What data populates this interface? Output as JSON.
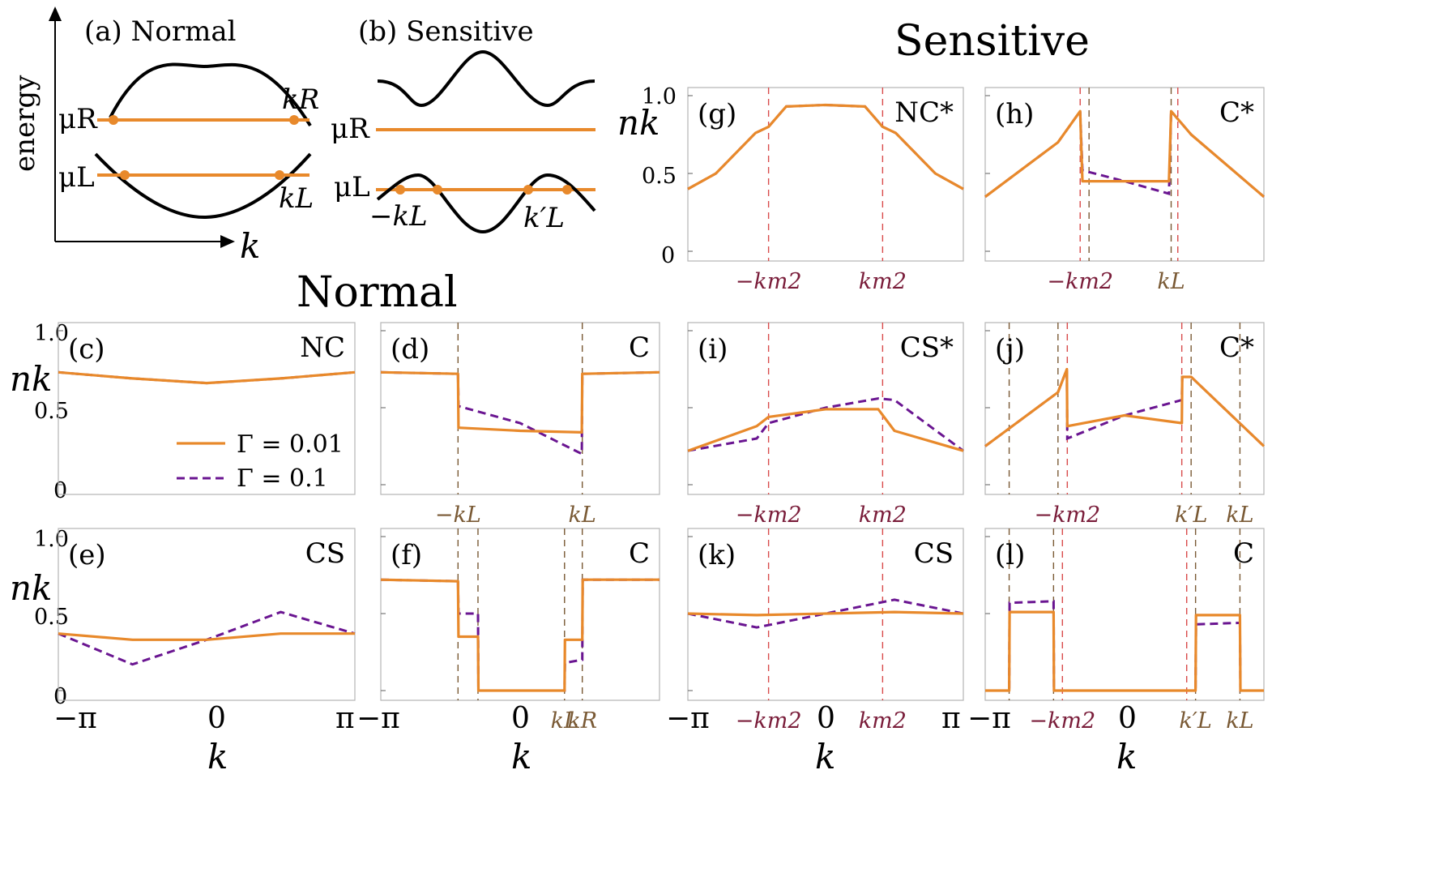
{
  "headings": {
    "sensitive": "Sensitive",
    "normal": "Normal"
  },
  "schematic": {
    "a": {
      "label": "(a) Normal",
      "energy": "energy",
      "k": "k",
      "mu_R": "μR",
      "mu_L": "μL",
      "k_R": "kR",
      "k_L": "kL"
    },
    "b": {
      "label": "(b) Sensitive",
      "mu_R": "μR",
      "mu_L": "μL",
      "neg_k_L": "−kL",
      "k_L_prime": "k′L"
    }
  },
  "axes": {
    "ylabel": "nk",
    "xlabel": "k",
    "yticks": [
      "1.0",
      "0.5",
      "0"
    ],
    "xticks": [
      "−π",
      "0",
      "π"
    ]
  },
  "legend": {
    "solid": "Γ = 0.01",
    "dashed": "Γ = 0.1"
  },
  "colors": {
    "solid": "#e8892b",
    "dashed": "#6a1591",
    "marker_brown": "#7a5a35",
    "marker_red": "#d94b4b",
    "marker_maroon": "#7a1d3a"
  },
  "chart_data": [
    {
      "type": "line",
      "panel": "(c)",
      "tag": "NC",
      "x": [
        -3.14,
        -1.57,
        0,
        1.57,
        3.14
      ],
      "series": [
        {
          "name": "Γ = 0.01",
          "values": [
            0.73,
            0.69,
            0.66,
            0.69,
            0.73
          ]
        },
        {
          "name": "Γ = 0.1",
          "values": [
            0.73,
            0.69,
            0.66,
            0.69,
            0.73
          ]
        }
      ],
      "ylim": [
        0,
        1
      ],
      "xlim": [
        -3.14,
        3.14
      ],
      "markers": []
    },
    {
      "type": "line",
      "panel": "(d)",
      "tag": "C",
      "x": [
        -3.14,
        -1.4,
        -1.39,
        0,
        1.39,
        1.4,
        3.14
      ],
      "series": [
        {
          "name": "Γ = 0.01",
          "values": [
            0.73,
            0.72,
            0.37,
            0.35,
            0.34,
            0.72,
            0.73
          ]
        },
        {
          "name": "Γ = 0.1",
          "values": [
            0.73,
            0.72,
            0.51,
            0.4,
            0.2,
            0.72,
            0.73
          ]
        }
      ],
      "ylim": [
        0,
        1
      ],
      "xlim": [
        -3.14,
        3.14
      ],
      "markers": [
        "−kL",
        "kL"
      ]
    },
    {
      "type": "line",
      "panel": "(e)",
      "tag": "CS",
      "x": [
        -3.14,
        -1.57,
        0,
        1.57,
        3.14
      ],
      "series": [
        {
          "name": "Γ = 0.01",
          "values": [
            0.37,
            0.33,
            0.33,
            0.37,
            0.37
          ]
        },
        {
          "name": "Γ = 0.1",
          "values": [
            0.37,
            0.17,
            0.33,
            0.51,
            0.37
          ]
        }
      ],
      "ylim": [
        0,
        1
      ],
      "xlim": [
        -3.14,
        3.14
      ],
      "markers": []
    },
    {
      "type": "line",
      "panel": "(f)",
      "tag": "C",
      "x": [
        -3.14,
        -1.4,
        -1.39,
        -0.95,
        -0.94,
        0,
        1.0,
        1.01,
        1.4,
        1.41,
        3.14
      ],
      "series": [
        {
          "name": "Γ = 0.01",
          "values": [
            0.72,
            0.71,
            0.35,
            0.35,
            0.0,
            0.0,
            0.0,
            0.33,
            0.33,
            0.72,
            0.72
          ]
        },
        {
          "name": "Γ = 0.1",
          "values": [
            0.72,
            0.71,
            0.5,
            0.5,
            0.0,
            0.0,
            0.0,
            0.18,
            0.2,
            0.72,
            0.72
          ]
        }
      ],
      "ylim": [
        0,
        1
      ],
      "xlim": [
        -3.14,
        3.14
      ],
      "markers": [
        "kL",
        "kR"
      ]
    },
    {
      "type": "line",
      "panel": "(g)",
      "tag": "NC*",
      "x": [
        -3.14,
        -2.5,
        -1.6,
        -1.3,
        -0.9,
        0,
        0.9,
        1.3,
        1.6,
        2.5,
        3.14
      ],
      "series": [
        {
          "name": "Γ = 0.01",
          "values": [
            0.4,
            0.5,
            0.76,
            0.8,
            0.93,
            0.94,
            0.93,
            0.8,
            0.76,
            0.5,
            0.4
          ]
        },
        {
          "name": "Γ = 0.1",
          "values": [
            0.4,
            0.5,
            0.76,
            0.8,
            0.93,
            0.94,
            0.93,
            0.8,
            0.76,
            0.5,
            0.4
          ]
        }
      ],
      "ylim": [
        0,
        1
      ],
      "xlim": [
        -3.14,
        3.14
      ],
      "markers": [
        "−km2",
        "km2"
      ]
    },
    {
      "type": "line",
      "panel": "(h)",
      "tag": "C*",
      "x": [
        -3.14,
        -1.5,
        -1.0,
        -0.95,
        0,
        1.0,
        1.05,
        1.5,
        3.14
      ],
      "series": [
        {
          "name": "Γ = 0.01",
          "values": [
            0.35,
            0.7,
            0.9,
            0.45,
            0.45,
            0.45,
            0.9,
            0.75,
            0.35
          ]
        },
        {
          "name": "Γ = 0.1",
          "values": [
            0.35,
            0.7,
            0.9,
            0.52,
            0.45,
            0.37,
            0.9,
            0.75,
            0.35
          ]
        }
      ],
      "ylim": [
        0,
        1
      ],
      "xlim": [
        -3.14,
        3.14
      ],
      "markers": [
        "−km2",
        "kL"
      ]
    },
    {
      "type": "line",
      "panel": "(i)",
      "tag": "CS*",
      "x": [
        -3.14,
        -1.57,
        -1.3,
        0,
        1.2,
        1.57,
        3.14
      ],
      "series": [
        {
          "name": "Γ = 0.01",
          "values": [
            0.22,
            0.38,
            0.44,
            0.49,
            0.49,
            0.35,
            0.22
          ]
        },
        {
          "name": "Γ = 0.1",
          "values": [
            0.22,
            0.3,
            0.4,
            0.5,
            0.56,
            0.55,
            0.22
          ]
        }
      ],
      "ylim": [
        0,
        1
      ],
      "xlim": [
        -3.14,
        3.14
      ],
      "markers": [
        "−km2",
        "km2"
      ]
    },
    {
      "type": "line",
      "panel": "(j)",
      "tag": "C*",
      "x": [
        -3.14,
        -1.5,
        -1.3,
        -1.29,
        0,
        1.29,
        1.3,
        1.5,
        3.14
      ],
      "series": [
        {
          "name": "Γ = 0.01",
          "values": [
            0.25,
            0.6,
            0.75,
            0.38,
            0.45,
            0.4,
            0.7,
            0.7,
            0.25
          ]
        },
        {
          "name": "Γ = 0.1",
          "values": [
            0.25,
            0.6,
            0.75,
            0.3,
            0.45,
            0.55,
            0.7,
            0.7,
            0.25
          ]
        }
      ],
      "ylim": [
        0,
        1
      ],
      "xlim": [
        -3.14,
        3.14
      ],
      "markers": [
        "−km2",
        "k′L",
        "kL"
      ]
    },
    {
      "type": "line",
      "panel": "(k)",
      "tag": "CS",
      "x": [
        -3.14,
        -1.57,
        0,
        1.57,
        3.14
      ],
      "series": [
        {
          "name": "Γ = 0.01",
          "values": [
            0.5,
            0.49,
            0.5,
            0.51,
            0.5
          ]
        },
        {
          "name": "Γ = 0.1",
          "values": [
            0.5,
            0.41,
            0.5,
            0.59,
            0.5
          ]
        }
      ],
      "ylim": [
        0,
        1
      ],
      "xlim": [
        -3.14,
        3.14
      ],
      "markers": [
        "−km2",
        "km2"
      ]
    },
    {
      "type": "line",
      "panel": "(l)",
      "tag": "C",
      "x": [
        -3.14,
        -2.6,
        -2.59,
        -1.6,
        -1.59,
        0,
        1.6,
        1.61,
        2.6,
        2.61,
        3.14
      ],
      "series": [
        {
          "name": "Γ = 0.01",
          "values": [
            0.0,
            0.0,
            0.51,
            0.51,
            0.0,
            0.0,
            0.0,
            0.49,
            0.49,
            0.0,
            0.0
          ]
        },
        {
          "name": "Γ = 0.1",
          "values": [
            0.0,
            0.0,
            0.57,
            0.58,
            0.0,
            0.0,
            0.0,
            0.43,
            0.44,
            0.0,
            0.0
          ]
        }
      ],
      "ylim": [
        0,
        1
      ],
      "xlim": [
        -3.14,
        3.14
      ],
      "markers": [
        "−km2",
        "k′L",
        "kL"
      ]
    }
  ]
}
